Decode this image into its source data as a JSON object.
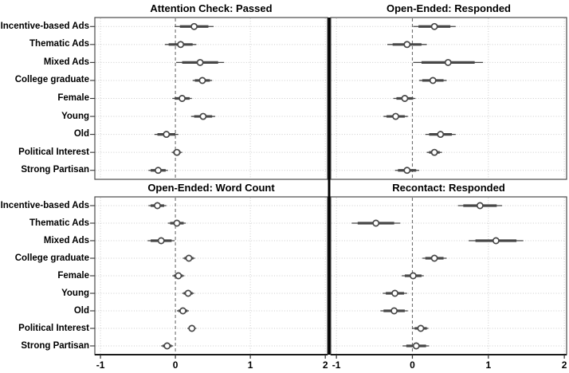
{
  "figure": {
    "categories": [
      "Incentive-based Ads",
      "Thematic Ads",
      "Mixed Ads",
      "College graduate",
      "Female",
      "Young",
      "Old",
      "Political Interest",
      "Strong Partisan"
    ],
    "x_axis": {
      "ticks": [
        -1,
        0,
        1,
        2
      ],
      "tick_labels": [
        "-1",
        "0",
        "1",
        "2"
      ],
      "range": [
        -1.075,
        2.03
      ],
      "zero_reference_line": true
    },
    "colors": {
      "marker": "#474747",
      "ci": "#474747",
      "grid": "#cccccc",
      "zero_line": "#6e6e6e",
      "border": "#4a4a4a",
      "divider": "#000000",
      "tick": "#333333",
      "background": "#ffffff",
      "text": "#000000"
    }
  },
  "chart_data": [
    {
      "type": "scatter",
      "subtype": "coefficient-dot-ci",
      "title": "Attention Check: Passed",
      "position": "top-left",
      "points": [
        {
          "label": "Incentive-based Ads",
          "estimate": 0.25,
          "ci_thick": [
            0.06,
            0.44
          ],
          "ci_thin": [
            -0.01,
            0.51
          ]
        },
        {
          "label": "Thematic Ads",
          "estimate": 0.07,
          "ci_thick": [
            -0.09,
            0.23
          ],
          "ci_thin": [
            -0.14,
            0.28
          ]
        },
        {
          "label": "Mixed Ads",
          "estimate": 0.33,
          "ci_thick": [
            0.09,
            0.57
          ],
          "ci_thin": [
            0.01,
            0.65
          ]
        },
        {
          "label": "College graduate",
          "estimate": 0.36,
          "ci_thick": [
            0.26,
            0.46
          ],
          "ci_thin": [
            0.23,
            0.49
          ]
        },
        {
          "label": "Female",
          "estimate": 0.09,
          "ci_thick": [
            -0.01,
            0.19
          ],
          "ci_thin": [
            -0.04,
            0.22
          ]
        },
        {
          "label": "Young",
          "estimate": 0.37,
          "ci_thick": [
            0.25,
            0.49
          ],
          "ci_thin": [
            0.21,
            0.53
          ]
        },
        {
          "label": "Old",
          "estimate": -0.12,
          "ci_thick": [
            -0.24,
            0.0
          ],
          "ci_thin": [
            -0.28,
            0.04
          ]
        },
        {
          "label": "Political Interest",
          "estimate": 0.02,
          "ci_thick": [
            -0.03,
            0.07
          ],
          "ci_thin": [
            -0.05,
            0.09
          ]
        },
        {
          "label": "Strong Partisan",
          "estimate": -0.23,
          "ci_thick": [
            -0.33,
            -0.13
          ],
          "ci_thin": [
            -0.36,
            -0.1
          ]
        }
      ]
    },
    {
      "type": "scatter",
      "subtype": "coefficient-dot-ci",
      "title": "Open-Ended: Responded",
      "position": "top-right",
      "points": [
        {
          "label": "Incentive-based Ads",
          "estimate": 0.29,
          "ci_thick": [
            0.08,
            0.5
          ],
          "ci_thin": [
            0.01,
            0.57
          ]
        },
        {
          "label": "Thematic Ads",
          "estimate": -0.07,
          "ci_thick": [
            -0.26,
            0.12
          ],
          "ci_thin": [
            -0.33,
            0.19
          ]
        },
        {
          "label": "Mixed Ads",
          "estimate": 0.47,
          "ci_thick": [
            0.12,
            0.82
          ],
          "ci_thin": [
            0.01,
            0.93
          ]
        },
        {
          "label": "College graduate",
          "estimate": 0.27,
          "ci_thick": [
            0.13,
            0.41
          ],
          "ci_thin": [
            0.09,
            0.45
          ]
        },
        {
          "label": "Female",
          "estimate": -0.1,
          "ci_thick": [
            -0.21,
            0.01
          ],
          "ci_thin": [
            -0.25,
            0.04
          ]
        },
        {
          "label": "Young",
          "estimate": -0.22,
          "ci_thick": [
            -0.34,
            -0.1
          ],
          "ci_thin": [
            -0.38,
            -0.06
          ]
        },
        {
          "label": "Old",
          "estimate": 0.37,
          "ci_thick": [
            0.22,
            0.52
          ],
          "ci_thin": [
            0.17,
            0.57
          ]
        },
        {
          "label": "Political Interest",
          "estimate": 0.29,
          "ci_thick": [
            0.22,
            0.36
          ],
          "ci_thin": [
            0.19,
            0.39
          ]
        },
        {
          "label": "Strong Partisan",
          "estimate": -0.07,
          "ci_thick": [
            -0.19,
            0.05
          ],
          "ci_thin": [
            -0.23,
            0.09
          ]
        }
      ]
    },
    {
      "type": "scatter",
      "subtype": "coefficient-dot-ci",
      "title": "Open-Ended: Word Count",
      "position": "bottom-left",
      "points": [
        {
          "label": "Incentive-based Ads",
          "estimate": -0.24,
          "ci_thick": [
            -0.33,
            -0.15
          ],
          "ci_thin": [
            -0.36,
            -0.12
          ]
        },
        {
          "label": "Thematic Ads",
          "estimate": 0.02,
          "ci_thick": [
            -0.07,
            0.11
          ],
          "ci_thin": [
            -0.1,
            0.14
          ]
        },
        {
          "label": "Mixed Ads",
          "estimate": -0.19,
          "ci_thick": [
            -0.33,
            -0.05
          ],
          "ci_thin": [
            -0.37,
            -0.01
          ]
        },
        {
          "label": "College graduate",
          "estimate": 0.18,
          "ci_thick": [
            0.12,
            0.24
          ],
          "ci_thin": [
            0.1,
            0.26
          ]
        },
        {
          "label": "Female",
          "estimate": 0.04,
          "ci_thick": [
            -0.02,
            0.1
          ],
          "ci_thin": [
            -0.04,
            0.12
          ]
        },
        {
          "label": "Young",
          "estimate": 0.17,
          "ci_thick": [
            0.11,
            0.23
          ],
          "ci_thin": [
            0.09,
            0.25
          ]
        },
        {
          "label": "Old",
          "estimate": 0.1,
          "ci_thick": [
            0.04,
            0.16
          ],
          "ci_thin": [
            0.02,
            0.18
          ]
        },
        {
          "label": "Political Interest",
          "estimate": 0.22,
          "ci_thick": [
            0.18,
            0.26
          ],
          "ci_thin": [
            0.16,
            0.28
          ]
        },
        {
          "label": "Strong Partisan",
          "estimate": -0.11,
          "ci_thick": [
            -0.17,
            -0.05
          ],
          "ci_thin": [
            -0.19,
            -0.03
          ]
        }
      ]
    },
    {
      "type": "scatter",
      "subtype": "coefficient-dot-ci",
      "title": "Recontact: Responded",
      "position": "bottom-right",
      "points": [
        {
          "label": "Incentive-based Ads",
          "estimate": 0.89,
          "ci_thick": [
            0.67,
            1.11
          ],
          "ci_thin": [
            0.6,
            1.18
          ]
        },
        {
          "label": "Thematic Ads",
          "estimate": -0.48,
          "ci_thick": [
            -0.72,
            -0.24
          ],
          "ci_thin": [
            -0.8,
            -0.16
          ]
        },
        {
          "label": "Mixed Ads",
          "estimate": 1.1,
          "ci_thick": [
            0.83,
            1.37
          ],
          "ci_thin": [
            0.74,
            1.46
          ]
        },
        {
          "label": "College graduate",
          "estimate": 0.29,
          "ci_thick": [
            0.17,
            0.41
          ],
          "ci_thin": [
            0.13,
            0.45
          ]
        },
        {
          "label": "Female",
          "estimate": 0.01,
          "ci_thick": [
            -0.1,
            0.12
          ],
          "ci_thin": [
            -0.14,
            0.15
          ]
        },
        {
          "label": "Young",
          "estimate": -0.23,
          "ci_thick": [
            -0.35,
            -0.11
          ],
          "ci_thin": [
            -0.39,
            -0.07
          ]
        },
        {
          "label": "Old",
          "estimate": -0.24,
          "ci_thick": [
            -0.38,
            -0.1
          ],
          "ci_thin": [
            -0.42,
            -0.06
          ]
        },
        {
          "label": "Political Interest",
          "estimate": 0.11,
          "ci_thick": [
            0.03,
            0.19
          ],
          "ci_thin": [
            0.0,
            0.21
          ]
        },
        {
          "label": "Strong Partisan",
          "estimate": 0.05,
          "ci_thick": [
            -0.08,
            0.18
          ],
          "ci_thin": [
            -0.13,
            0.22
          ]
        }
      ]
    }
  ]
}
